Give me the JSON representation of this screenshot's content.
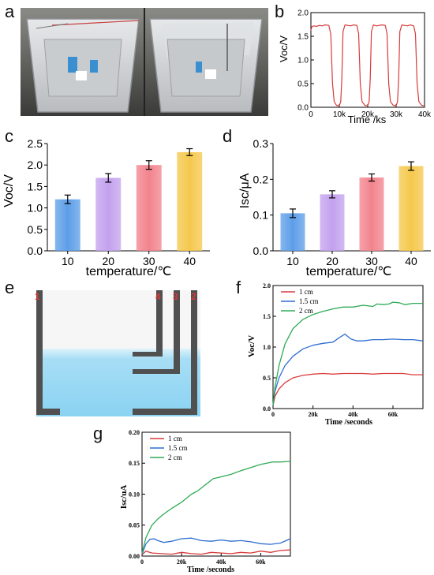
{
  "panel_letters": {
    "a": "a",
    "b": "b",
    "c": "c",
    "d": "d",
    "e": "e",
    "f": "f",
    "g": "g"
  },
  "colors": {
    "red": "#d83a3a",
    "blue": "#2f6fd0",
    "green": "#2faa55",
    "water": "#9fdaf4",
    "wall": "#505050",
    "tube_label": "#d83a3a"
  },
  "schematic": {
    "labels": [
      "1",
      "4",
      "3",
      "2"
    ]
  },
  "chart_data": [
    {
      "id": "b",
      "type": "line",
      "xlabel": "Time /ks",
      "ylabel": "Voc/V",
      "xlim": [
        0,
        40000
      ],
      "ylim": [
        0,
        2.0
      ],
      "xticks": [
        0,
        10000,
        20000,
        30000,
        40000
      ],
      "xticklabels": [
        "0",
        "10k",
        "20k",
        "30k",
        "40k"
      ],
      "yticks": [
        0,
        0.5,
        1.0,
        1.5,
        2.0
      ],
      "yticklabels": [
        "0.0",
        "0.5",
        "1.0",
        "1.5",
        "2.0"
      ],
      "series": [
        {
          "color": "#d83a3a",
          "x": [
            0,
            300,
            1000,
            2000,
            3000,
            4000,
            5000,
            6300,
            7000,
            7600,
            8200,
            9000,
            10000,
            10500,
            10900,
            11300,
            12000,
            13000,
            14000,
            15000,
            16200,
            16800,
            17400,
            18000,
            19000,
            20000,
            20500,
            20900,
            21300,
            22000,
            23000,
            24000,
            25000,
            26200,
            26800,
            27400,
            28000,
            29000,
            30000,
            30500,
            30900,
            31300,
            32000,
            33000,
            34000,
            35000,
            36200,
            36800,
            37400,
            38000,
            39000,
            40000
          ],
          "y": [
            1.62,
            1.7,
            1.72,
            1.71,
            1.73,
            1.72,
            1.74,
            1.73,
            1.55,
            0.5,
            0.12,
            0.04,
            0.03,
            0.12,
            0.6,
            1.6,
            1.74,
            1.73,
            1.72,
            1.74,
            1.73,
            1.55,
            0.5,
            0.12,
            0.04,
            0.03,
            0.12,
            0.6,
            1.6,
            1.74,
            1.72,
            1.73,
            1.74,
            1.73,
            1.55,
            0.5,
            0.12,
            0.04,
            0.03,
            0.12,
            0.6,
            1.6,
            1.74,
            1.73,
            1.72,
            1.74,
            1.72,
            1.55,
            0.5,
            0.12,
            0.04,
            0.03
          ]
        }
      ]
    },
    {
      "id": "c",
      "type": "bar",
      "xlabel": "temperature/℃",
      "ylabel": "Voc/V",
      "ylim": [
        0,
        2.5
      ],
      "yticks": [
        0,
        0.5,
        1.0,
        1.5,
        2.0,
        2.5
      ],
      "yticklabels": [
        "0.0",
        "0.5",
        "1.0",
        "1.5",
        "2.0",
        "2.5"
      ],
      "categories": [
        "10",
        "20",
        "30",
        "40"
      ],
      "values": [
        1.2,
        1.7,
        2.0,
        2.3
      ],
      "errors": [
        0.1,
        0.1,
        0.1,
        0.08
      ],
      "bar_colors": [
        "#5d9ee8",
        "#c3a1ee",
        "#f2838d",
        "#f5c84c"
      ]
    },
    {
      "id": "d",
      "type": "bar",
      "xlabel": "temperature/℃",
      "ylabel": "Isc/μA",
      "ylim": [
        0,
        0.3
      ],
      "yticks": [
        0,
        0.1,
        0.2,
        0.3
      ],
      "yticklabels": [
        "0.0",
        "0.1",
        "0.2",
        "0.3"
      ],
      "categories": [
        "10",
        "20",
        "30",
        "40"
      ],
      "values": [
        0.105,
        0.158,
        0.205,
        0.237
      ],
      "errors": [
        0.012,
        0.01,
        0.01,
        0.012
      ],
      "bar_colors": [
        "#5d9ee8",
        "#c3a1ee",
        "#f2838d",
        "#f5c84c"
      ]
    },
    {
      "id": "f",
      "type": "line",
      "xlabel": "Time /seconds",
      "ylabel": "Voc/V",
      "xlim": [
        0,
        75000
      ],
      "ylim": [
        0,
        2.0
      ],
      "xticks": [
        0,
        20000,
        40000,
        60000
      ],
      "xticklabels": [
        "0",
        "20k",
        "40k",
        "60k"
      ],
      "yticks": [
        0,
        0.5,
        1.0,
        1.5,
        2.0
      ],
      "yticklabels": [
        "0.0",
        "0.5",
        "1.0",
        "1.5",
        "2.0"
      ],
      "legend": "top-left",
      "series": [
        {
          "name": "1 cm",
          "color": "#d83a3a",
          "x": [
            0,
            1000,
            3000,
            6000,
            10000,
            15000,
            20000,
            25000,
            30000,
            35000,
            40000,
            45000,
            50000,
            55000,
            60000,
            65000,
            70000,
            75000
          ],
          "y": [
            0.05,
            0.2,
            0.32,
            0.42,
            0.5,
            0.54,
            0.56,
            0.57,
            0.56,
            0.57,
            0.57,
            0.57,
            0.56,
            0.57,
            0.57,
            0.57,
            0.55,
            0.55
          ]
        },
        {
          "name": "1.5 cm",
          "color": "#2f6fd0",
          "x": [
            0,
            1000,
            3000,
            6000,
            10000,
            15000,
            20000,
            25000,
            30000,
            33000,
            36000,
            39000,
            42000,
            45000,
            50000,
            55000,
            60000,
            65000,
            70000,
            75000
          ],
          "y": [
            0.05,
            0.28,
            0.5,
            0.7,
            0.85,
            0.97,
            1.03,
            1.06,
            1.08,
            1.15,
            1.21,
            1.13,
            1.1,
            1.1,
            1.12,
            1.12,
            1.13,
            1.12,
            1.12,
            1.1
          ]
        },
        {
          "name": "2 cm",
          "color": "#2faa55",
          "x": [
            0,
            1000,
            3000,
            6000,
            10000,
            15000,
            20000,
            25000,
            30000,
            35000,
            40000,
            45000,
            50000,
            52000,
            55000,
            58000,
            60000,
            63000,
            66000,
            70000,
            75000
          ],
          "y": [
            0.05,
            0.35,
            0.7,
            1.05,
            1.3,
            1.45,
            1.53,
            1.58,
            1.62,
            1.65,
            1.65,
            1.68,
            1.66,
            1.7,
            1.69,
            1.7,
            1.73,
            1.72,
            1.69,
            1.71,
            1.71
          ]
        }
      ]
    },
    {
      "id": "g",
      "type": "line",
      "xlabel": "Time /seconds",
      "ylabel": "Isc/uA",
      "xlim": [
        0,
        75000
      ],
      "ylim": [
        0,
        0.2
      ],
      "xticks": [
        0,
        20000,
        40000,
        60000
      ],
      "xticklabels": [
        "0",
        "20k",
        "40k",
        "60k"
      ],
      "yticks": [
        0,
        0.05,
        0.1,
        0.15,
        0.2
      ],
      "yticklabels": [
        "0.00",
        "0.05",
        "0.10",
        "0.15",
        "0.20"
      ],
      "legend": "top-left",
      "series": [
        {
          "name": "1 cm",
          "color": "#d83a3a",
          "x": [
            0,
            2000,
            5000,
            10000,
            15000,
            20000,
            25000,
            30000,
            35000,
            40000,
            45000,
            50000,
            55000,
            60000,
            65000,
            70000,
            75000
          ],
          "y": [
            0.002,
            0.008,
            0.005,
            0.004,
            0.003,
            0.006,
            0.004,
            0.003,
            0.006,
            0.005,
            0.004,
            0.006,
            0.005,
            0.008,
            0.006,
            0.009,
            0.01
          ]
        },
        {
          "name": "1.5 cm",
          "color": "#2f6fd0",
          "x": [
            0,
            2000,
            4000,
            6000,
            8000,
            11000,
            15000,
            20000,
            25000,
            30000,
            35000,
            40000,
            45000,
            50000,
            55000,
            60000,
            65000,
            70000,
            75000
          ],
          "y": [
            0.003,
            0.02,
            0.027,
            0.028,
            0.025,
            0.022,
            0.024,
            0.028,
            0.029,
            0.025,
            0.024,
            0.026,
            0.024,
            0.025,
            0.023,
            0.02,
            0.019,
            0.021,
            0.028
          ]
        },
        {
          "name": "2 cm",
          "color": "#2faa55",
          "x": [
            0,
            2000,
            5000,
            8000,
            11000,
            15000,
            20000,
            25000,
            28000,
            32000,
            36000,
            40000,
            45000,
            50000,
            55000,
            60000,
            63000,
            66000,
            70000,
            75000
          ],
          "y": [
            0.005,
            0.03,
            0.05,
            0.06,
            0.068,
            0.077,
            0.087,
            0.1,
            0.105,
            0.115,
            0.125,
            0.128,
            0.132,
            0.138,
            0.143,
            0.148,
            0.15,
            0.152,
            0.152,
            0.153
          ]
        }
      ]
    }
  ]
}
